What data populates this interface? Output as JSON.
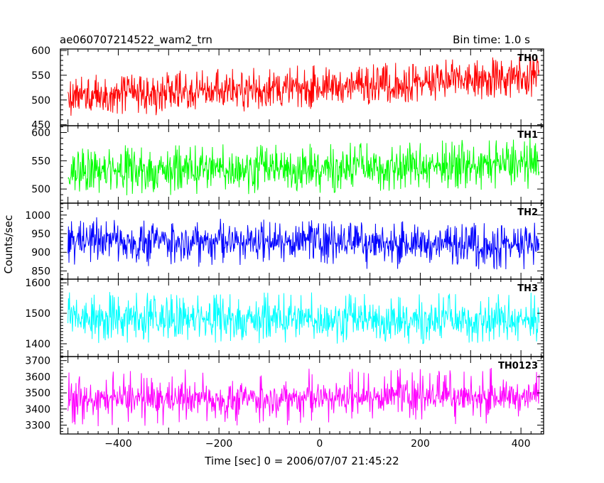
{
  "header": {
    "title": "ae060707214522_wam2_trn",
    "bin_time": "Bin time: 1.0 s"
  },
  "chart_data": {
    "type": "line",
    "xlabel": "Time [sec] 0 = 2006/07/07 21:45:22",
    "ylabel": "Counts/sec",
    "xlim": [
      -515,
      445
    ],
    "x_range": [
      -500,
      436
    ],
    "x_ticks": [
      -400,
      -200,
      0,
      200,
      400
    ],
    "x_tick_labels": [
      "−400",
      "−200",
      "0",
      "200",
      "400"
    ],
    "panels": [
      {
        "name": "TH0",
        "color": "#ff0000",
        "ylim": [
          448,
          603
        ],
        "y_ticks": [
          450,
          500,
          550,
          600
        ],
        "y_tick_labels": [
          "450",
          "500",
          "550",
          "600"
        ],
        "y_start": 505,
        "y_end": 545,
        "spread": 17,
        "spike_up": 45,
        "spike_down": 40
      },
      {
        "name": "TH1",
        "color": "#00ff00",
        "ylim": [
          475,
          612
        ],
        "y_ticks": [
          500,
          550,
          600
        ],
        "y_tick_labels": [
          "500",
          "550",
          "600"
        ],
        "y_start": 530,
        "y_end": 545,
        "spread": 16,
        "spike_up": 45,
        "spike_down": 45
      },
      {
        "name": "TH2",
        "color": "#0000ff",
        "ylim": [
          828,
          1032
        ],
        "y_ticks": [
          850,
          900,
          950,
          1000
        ],
        "y_tick_labels": [
          "850",
          "900",
          "950",
          "1000"
        ],
        "y_start": 935,
        "y_end": 920,
        "spread": 22,
        "spike_up": 60,
        "spike_down": 70
      },
      {
        "name": "TH3",
        "color": "#00ffff",
        "ylim": [
          1358,
          1612
        ],
        "y_ticks": [
          1400,
          1500,
          1600
        ],
        "y_tick_labels": [
          "1400",
          "1500",
          "1600"
        ],
        "y_start": 1480,
        "y_end": 1480,
        "spread": 28,
        "spike_up": 90,
        "spike_down": 80
      },
      {
        "name": "TH0123",
        "color": "#ff00ff",
        "ylim": [
          3245,
          3725
        ],
        "y_ticks": [
          3300,
          3400,
          3500,
          3600,
          3700
        ],
        "y_tick_labels": [
          "3300",
          "3400",
          "3500",
          "3600",
          "3700"
        ],
        "y_start": 3460,
        "y_end": 3480,
        "spread": 45,
        "spike_up": 180,
        "spike_down": 170
      }
    ]
  }
}
